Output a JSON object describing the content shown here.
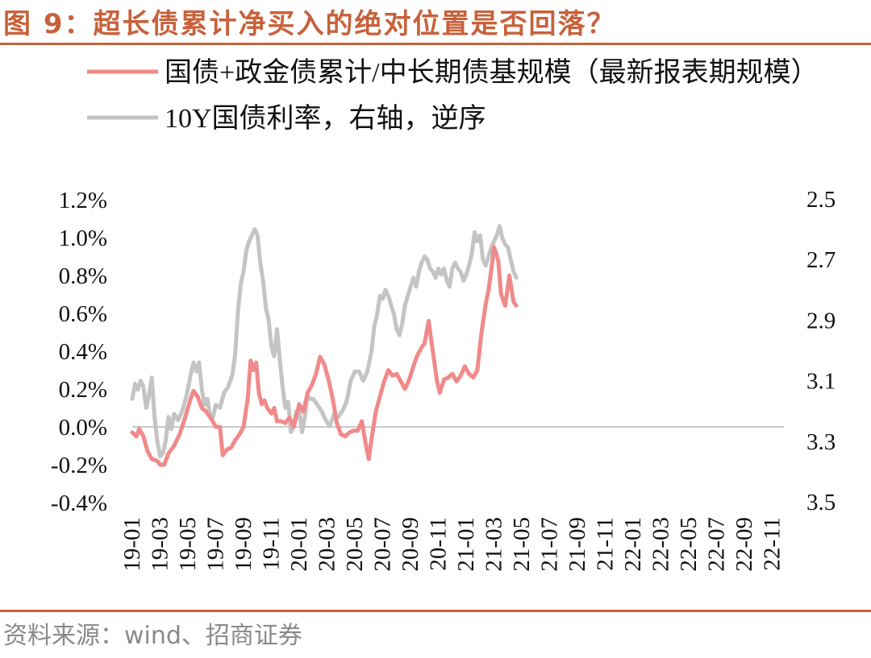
{
  "title": "图 9：超长债累计净买入的绝对位置是否回落？",
  "source": "资料来源：wind、招商证券",
  "colors": {
    "accent": "#c8613a",
    "series1": "#f08a8a",
    "series2": "#c4c4c4",
    "zero": "#c9c9c9"
  },
  "chart_data": {
    "type": "line",
    "title": "超长债累计净买入的绝对位置是否回落？",
    "x_ticks": [
      "19-01",
      "19-03",
      "19-05",
      "19-07",
      "19-09",
      "19-11",
      "20-01",
      "20-03",
      "20-05",
      "20-07",
      "20-09",
      "20-11",
      "21-01",
      "21-03",
      "21-05",
      "21-07",
      "21-09",
      "21-11",
      "22-01",
      "22-03",
      "22-05",
      "22-07",
      "22-09",
      "22-11"
    ],
    "y_left": {
      "label_format": "percent",
      "range": [
        -0.4,
        1.2
      ],
      "ticks": [
        "1.2%",
        "1.0%",
        "0.8%",
        "0.6%",
        "0.4%",
        "0.2%",
        "0.0%",
        "-0.2%",
        "-0.4%"
      ]
    },
    "y_right": {
      "range": [
        2.5,
        3.5
      ],
      "inverted": true,
      "ticks": [
        "2.5",
        "2.7",
        "2.9",
        "3.1",
        "3.3",
        "3.5"
      ]
    },
    "series": [
      {
        "name": "国债+政金债累计/中长期债基规模（最新报表期规模）",
        "axis": "left",
        "color": "#f08a8a",
        "points": [
          [
            0.0,
            -0.03
          ],
          [
            0.3,
            -0.05
          ],
          [
            0.5,
            -0.01
          ],
          [
            0.8,
            -0.05
          ],
          [
            1.1,
            -0.13
          ],
          [
            1.4,
            -0.17
          ],
          [
            1.8,
            -0.18
          ],
          [
            2.0,
            -0.2
          ],
          [
            2.3,
            -0.2
          ],
          [
            2.6,
            -0.14
          ],
          [
            3.0,
            -0.1
          ],
          [
            3.4,
            -0.04
          ],
          [
            3.8,
            0.05
          ],
          [
            4.2,
            0.15
          ],
          [
            4.4,
            0.19
          ],
          [
            4.7,
            0.16
          ],
          [
            5.0,
            0.1
          ],
          [
            5.3,
            0.08
          ],
          [
            5.7,
            0.04
          ],
          [
            6.0,
            0.0
          ],
          [
            6.3,
            0.0
          ],
          [
            6.5,
            -0.15
          ],
          [
            6.8,
            -0.12
          ],
          [
            7.1,
            -0.11
          ],
          [
            7.4,
            -0.07
          ],
          [
            7.7,
            -0.04
          ],
          [
            8.0,
            0.0
          ],
          [
            8.3,
            0.15
          ],
          [
            8.5,
            0.35
          ],
          [
            8.7,
            0.3
          ],
          [
            8.9,
            0.34
          ],
          [
            9.1,
            0.18
          ],
          [
            9.3,
            0.12
          ],
          [
            9.5,
            0.14
          ],
          [
            9.7,
            0.1
          ],
          [
            10.0,
            0.07
          ],
          [
            10.2,
            0.1
          ],
          [
            10.4,
            0.03
          ],
          [
            10.7,
            0.03
          ],
          [
            11.0,
            0.02
          ],
          [
            11.3,
            0.05
          ],
          [
            11.6,
            0.0
          ],
          [
            12.0,
            0.12
          ],
          [
            12.3,
            0.08
          ],
          [
            12.6,
            0.18
          ],
          [
            12.9,
            0.22
          ],
          [
            13.2,
            0.28
          ],
          [
            13.5,
            0.37
          ],
          [
            13.8,
            0.33
          ],
          [
            14.1,
            0.25
          ],
          [
            14.4,
            0.15
          ],
          [
            14.7,
            0.02
          ],
          [
            15.0,
            -0.04
          ],
          [
            15.3,
            -0.05
          ],
          [
            15.6,
            -0.03
          ],
          [
            15.9,
            -0.02
          ],
          [
            16.2,
            -0.02
          ],
          [
            16.5,
            0.03
          ],
          [
            16.8,
            -0.1
          ],
          [
            17.0,
            -0.17
          ],
          [
            17.2,
            -0.06
          ],
          [
            17.5,
            0.08
          ],
          [
            17.8,
            0.16
          ],
          [
            18.1,
            0.24
          ],
          [
            18.4,
            0.3
          ],
          [
            18.7,
            0.27
          ],
          [
            19.0,
            0.28
          ],
          [
            19.3,
            0.24
          ],
          [
            19.6,
            0.2
          ],
          [
            19.9,
            0.25
          ],
          [
            20.2,
            0.32
          ],
          [
            20.5,
            0.38
          ],
          [
            20.8,
            0.42
          ],
          [
            21.0,
            0.44
          ],
          [
            21.3,
            0.56
          ],
          [
            21.6,
            0.4
          ],
          [
            21.9,
            0.24
          ],
          [
            22.1,
            0.18
          ],
          [
            22.4,
            0.25
          ],
          [
            22.7,
            0.26
          ],
          [
            23.0,
            0.28
          ],
          [
            23.3,
            0.24
          ],
          [
            23.6,
            0.27
          ],
          [
            23.9,
            0.32
          ],
          [
            24.2,
            0.28
          ],
          [
            24.5,
            0.26
          ],
          [
            24.8,
            0.3
          ],
          [
            25.1,
            0.5
          ],
          [
            25.4,
            0.65
          ],
          [
            25.6,
            0.72
          ],
          [
            25.8,
            0.83
          ],
          [
            26.0,
            0.95
          ],
          [
            26.3,
            0.88
          ],
          [
            26.5,
            0.7
          ],
          [
            26.8,
            0.64
          ],
          [
            27.1,
            0.8
          ],
          [
            27.4,
            0.66
          ],
          [
            27.6,
            0.64
          ]
        ]
      },
      {
        "name": "10Y国债利率，右轴，逆序",
        "axis": "right",
        "color": "#c4c4c4",
        "points": [
          [
            0.0,
            3.16
          ],
          [
            0.2,
            3.11
          ],
          [
            0.4,
            3.13
          ],
          [
            0.6,
            3.1
          ],
          [
            0.8,
            3.12
          ],
          [
            1.0,
            3.19
          ],
          [
            1.2,
            3.15
          ],
          [
            1.4,
            3.09
          ],
          [
            1.6,
            3.22
          ],
          [
            1.8,
            3.3
          ],
          [
            2.0,
            3.35
          ],
          [
            2.2,
            3.34
          ],
          [
            2.4,
            3.3
          ],
          [
            2.6,
            3.22
          ],
          [
            2.8,
            3.26
          ],
          [
            3.0,
            3.21
          ],
          [
            3.3,
            3.23
          ],
          [
            3.6,
            3.2
          ],
          [
            3.9,
            3.15
          ],
          [
            4.2,
            3.08
          ],
          [
            4.4,
            3.04
          ],
          [
            4.6,
            3.07
          ],
          [
            4.8,
            3.04
          ],
          [
            5.0,
            3.13
          ],
          [
            5.2,
            3.18
          ],
          [
            5.4,
            3.16
          ],
          [
            5.6,
            3.22
          ],
          [
            5.8,
            3.22
          ],
          [
            6.0,
            3.18
          ],
          [
            6.3,
            3.19
          ],
          [
            6.6,
            3.14
          ],
          [
            6.9,
            3.12
          ],
          [
            7.2,
            3.08
          ],
          [
            7.4,
            3.01
          ],
          [
            7.6,
            2.87
          ],
          [
            7.8,
            2.78
          ],
          [
            8.0,
            2.74
          ],
          [
            8.2,
            2.67
          ],
          [
            8.4,
            2.64
          ],
          [
            8.6,
            2.62
          ],
          [
            8.8,
            2.6
          ],
          [
            9.0,
            2.62
          ],
          [
            9.2,
            2.71
          ],
          [
            9.4,
            2.77
          ],
          [
            9.6,
            2.86
          ],
          [
            9.8,
            2.9
          ],
          [
            10.0,
            2.99
          ],
          [
            10.2,
            3.02
          ],
          [
            10.4,
            2.93
          ],
          [
            10.6,
            3.03
          ],
          [
            10.8,
            3.12
          ],
          [
            11.0,
            3.19
          ],
          [
            11.2,
            3.17
          ],
          [
            11.4,
            3.27
          ],
          [
            11.6,
            3.25
          ],
          [
            11.8,
            3.2
          ],
          [
            12.0,
            3.2
          ],
          [
            12.2,
            3.27
          ],
          [
            12.4,
            3.22
          ],
          [
            12.6,
            3.15
          ],
          [
            12.8,
            3.16
          ],
          [
            13.0,
            3.16
          ],
          [
            13.3,
            3.18
          ],
          [
            13.6,
            3.2
          ],
          [
            13.9,
            3.23
          ],
          [
            14.2,
            3.25
          ],
          [
            14.5,
            3.21
          ],
          [
            14.8,
            3.22
          ],
          [
            15.1,
            3.2
          ],
          [
            15.4,
            3.17
          ],
          [
            15.7,
            3.1
          ],
          [
            16.0,
            3.07
          ],
          [
            16.3,
            3.07
          ],
          [
            16.6,
            3.1
          ],
          [
            16.9,
            3.07
          ],
          [
            17.2,
            3.0
          ],
          [
            17.4,
            2.92
          ],
          [
            17.6,
            2.88
          ],
          [
            17.8,
            2.82
          ],
          [
            18.0,
            2.83
          ],
          [
            18.2,
            2.8
          ],
          [
            18.4,
            2.82
          ],
          [
            18.6,
            2.85
          ],
          [
            18.8,
            2.88
          ],
          [
            19.0,
            2.93
          ],
          [
            19.2,
            2.95
          ],
          [
            19.4,
            2.91
          ],
          [
            19.6,
            2.85
          ],
          [
            19.8,
            2.82
          ],
          [
            20.0,
            2.79
          ],
          [
            20.2,
            2.76
          ],
          [
            20.4,
            2.79
          ],
          [
            20.6,
            2.74
          ],
          [
            20.8,
            2.71
          ],
          [
            21.0,
            2.69
          ],
          [
            21.2,
            2.7
          ],
          [
            21.4,
            2.73
          ],
          [
            21.6,
            2.74
          ],
          [
            21.8,
            2.76
          ],
          [
            22.0,
            2.73
          ],
          [
            22.2,
            2.75
          ],
          [
            22.4,
            2.73
          ],
          [
            22.6,
            2.77
          ],
          [
            22.8,
            2.79
          ],
          [
            23.0,
            2.73
          ],
          [
            23.2,
            2.71
          ],
          [
            23.4,
            2.73
          ],
          [
            23.6,
            2.74
          ],
          [
            23.8,
            2.77
          ],
          [
            24.0,
            2.75
          ],
          [
            24.2,
            2.72
          ],
          [
            24.4,
            2.68
          ],
          [
            24.6,
            2.61
          ],
          [
            24.8,
            2.64
          ],
          [
            25.0,
            2.62
          ],
          [
            25.2,
            2.7
          ],
          [
            25.4,
            2.72
          ],
          [
            25.6,
            2.69
          ],
          [
            25.8,
            2.66
          ],
          [
            26.0,
            2.64
          ],
          [
            26.2,
            2.62
          ],
          [
            26.4,
            2.59
          ],
          [
            26.6,
            2.63
          ],
          [
            26.8,
            2.65
          ],
          [
            27.0,
            2.66
          ],
          [
            27.2,
            2.7
          ],
          [
            27.4,
            2.74
          ],
          [
            27.6,
            2.76
          ]
        ]
      }
    ]
  }
}
